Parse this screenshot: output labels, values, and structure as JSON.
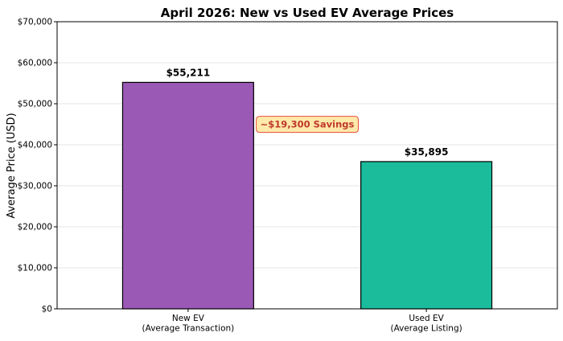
{
  "chart_data": {
    "type": "bar",
    "title": "April 2026: New vs Used EV Average Prices",
    "ylabel": "Average Price (USD)",
    "xlabel": "",
    "ylim": [
      0,
      70000
    ],
    "yticks": [
      0,
      10000,
      20000,
      30000,
      40000,
      50000,
      60000,
      70000
    ],
    "ytick_labels": [
      "$0",
      "$10,000",
      "$20,000",
      "$30,000",
      "$40,000",
      "$50,000",
      "$60,000",
      "$70,000"
    ],
    "grid": true,
    "categories": [
      [
        "New EV",
        "(Average Transaction)"
      ],
      [
        "Used EV",
        "(Average Listing)"
      ]
    ],
    "values": [
      55211,
      35895
    ],
    "value_labels": [
      "$55,211",
      "$35,895"
    ],
    "colors": [
      "#9b59b6",
      "#1abc9c"
    ],
    "annotation": {
      "text": "~$19,300 Savings",
      "text_color": "#c0392b",
      "box_fill": "#fde9a9",
      "box_edge": "#e74c3c"
    }
  }
}
